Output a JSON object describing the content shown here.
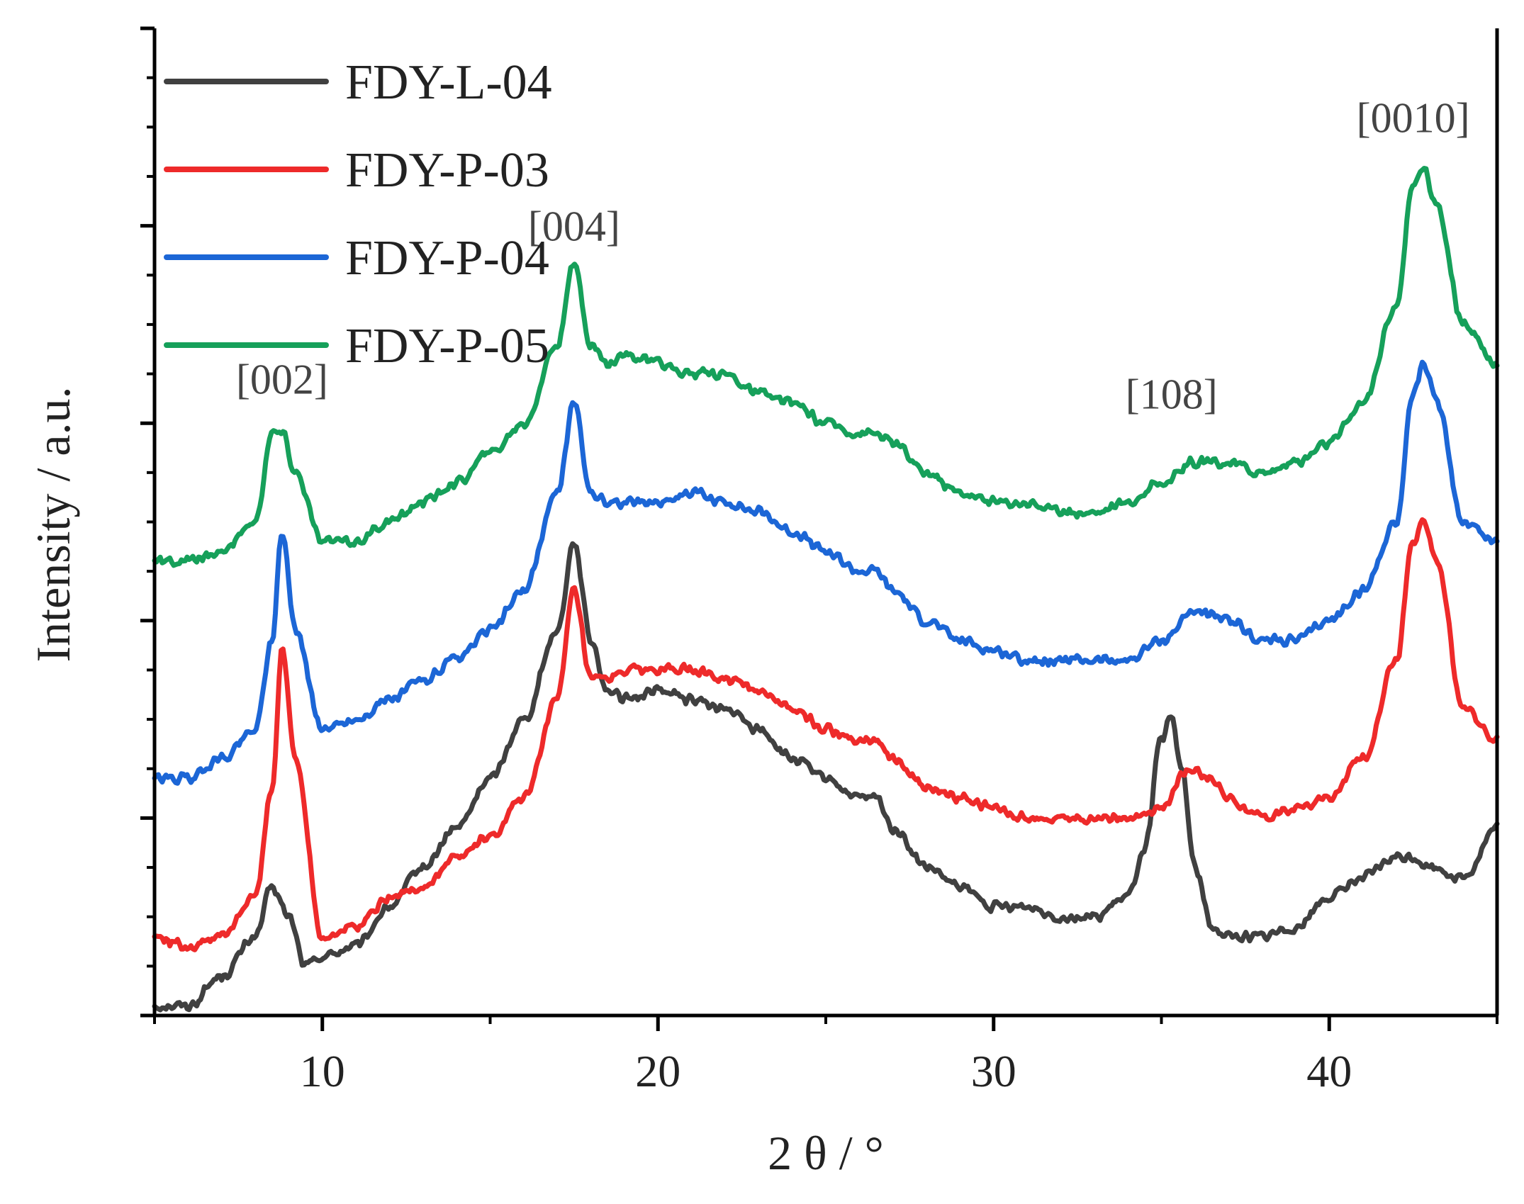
{
  "chart_data": {
    "type": "line",
    "title": "",
    "xlabel": "2 θ / °",
    "ylabel": "Intensity / a.u.",
    "xlim": [
      5,
      45
    ],
    "ylim": [
      0,
      10
    ],
    "xticks": [
      10,
      20,
      30,
      40
    ],
    "xtick_labels": [
      "10",
      "20",
      "30",
      "40"
    ],
    "yticks_shown": false,
    "legend_position": "top-left",
    "colors": {
      "FDY-L-04": "#404040",
      "FDY-P-03": "#ee2a2a",
      "FDY-P-04": "#1c66d6",
      "FDY-P-05": "#16a05a",
      "axis": "#000000"
    },
    "series": [
      {
        "name": "FDY-L-04",
        "x": [
          5,
          6,
          7,
          8,
          8.5,
          9,
          9.5,
          10,
          11,
          12,
          13,
          14,
          15,
          16,
          17,
          17.5,
          18,
          18.5,
          19,
          20,
          21,
          22,
          23,
          24,
          25,
          26,
          26.5,
          27,
          28,
          29,
          30,
          31,
          32,
          33,
          34,
          34.5,
          35,
          35.3,
          35.6,
          36,
          36.5,
          37,
          38,
          39,
          40,
          41,
          42,
          42.5,
          43,
          44,
          45
        ],
        "y": [
          0.1,
          0.1,
          0.4,
          0.8,
          1.3,
          1.0,
          0.5,
          0.6,
          0.7,
          1.1,
          1.5,
          1.9,
          2.4,
          3.0,
          3.9,
          4.8,
          3.8,
          3.3,
          3.2,
          3.3,
          3.2,
          3.1,
          2.9,
          2.6,
          2.4,
          2.2,
          2.2,
          1.9,
          1.5,
          1.3,
          1.1,
          1.1,
          1.0,
          1.0,
          1.2,
          1.7,
          2.8,
          3.0,
          2.5,
          1.5,
          0.9,
          0.8,
          0.8,
          0.9,
          1.2,
          1.4,
          1.6,
          1.6,
          1.5,
          1.4,
          1.9
        ]
      },
      {
        "name": "FDY-P-03",
        "x": [
          5,
          6,
          7,
          8,
          8.5,
          8.8,
          9.2,
          10,
          11,
          12,
          13,
          14,
          15,
          16,
          17,
          17.5,
          18,
          18.5,
          19,
          20,
          21,
          22,
          23,
          24,
          25,
          26,
          26.5,
          27,
          28,
          29,
          30,
          31,
          32,
          33,
          34,
          35,
          35.8,
          36.5,
          37,
          38,
          39,
          40,
          41,
          42,
          42.5,
          42.8,
          43.2,
          44,
          45
        ],
        "y": [
          0.8,
          0.7,
          0.8,
          1.2,
          2.3,
          3.7,
          2.6,
          0.8,
          0.9,
          1.2,
          1.3,
          1.6,
          1.8,
          2.2,
          3.2,
          4.3,
          3.4,
          3.4,
          3.5,
          3.5,
          3.5,
          3.4,
          3.3,
          3.1,
          2.9,
          2.8,
          2.8,
          2.6,
          2.3,
          2.2,
          2.1,
          2.0,
          2.0,
          2.0,
          2.0,
          2.1,
          2.5,
          2.4,
          2.2,
          2.0,
          2.1,
          2.2,
          2.6,
          3.6,
          4.8,
          5.0,
          4.6,
          3.1,
          2.8
        ]
      },
      {
        "name": "FDY-P-04",
        "x": [
          5,
          6,
          7,
          8,
          8.5,
          8.8,
          9.2,
          10,
          11,
          12,
          13,
          14,
          15,
          16,
          17,
          17.5,
          18,
          18.5,
          19,
          20,
          21,
          22,
          23,
          24,
          25,
          26,
          26.5,
          27,
          28,
          29,
          30,
          31,
          32,
          33,
          34,
          35,
          36,
          37,
          38,
          39,
          40,
          41,
          42,
          42.5,
          42.8,
          43.2,
          44,
          45
        ],
        "y": [
          2.4,
          2.4,
          2.6,
          2.9,
          3.8,
          4.9,
          3.9,
          2.9,
          3.0,
          3.2,
          3.4,
          3.6,
          3.9,
          4.3,
          5.3,
          6.2,
          5.3,
          5.2,
          5.2,
          5.2,
          5.3,
          5.2,
          5.1,
          4.9,
          4.7,
          4.5,
          4.5,
          4.3,
          4.0,
          3.8,
          3.7,
          3.6,
          3.6,
          3.6,
          3.6,
          3.8,
          4.1,
          4.0,
          3.8,
          3.8,
          4.0,
          4.3,
          5.0,
          6.3,
          6.6,
          6.2,
          5.0,
          4.8
        ]
      },
      {
        "name": "FDY-P-05",
        "x": [
          5,
          6,
          7,
          8,
          8.5,
          8.8,
          9.2,
          10,
          11,
          12,
          13,
          14,
          15,
          16,
          17,
          17.5,
          18,
          18.5,
          19,
          20,
          21,
          22,
          23,
          24,
          25,
          26,
          26.5,
          27,
          28,
          29,
          30,
          31,
          32,
          33,
          34,
          35,
          36,
          37,
          38,
          39,
          40,
          41,
          42,
          42.5,
          42.8,
          43.2,
          44,
          45
        ],
        "y": [
          4.6,
          4.6,
          4.7,
          5.0,
          5.9,
          5.9,
          5.5,
          4.8,
          4.8,
          5.0,
          5.2,
          5.4,
          5.7,
          6.0,
          6.8,
          7.6,
          6.8,
          6.6,
          6.7,
          6.6,
          6.5,
          6.5,
          6.3,
          6.2,
          6.0,
          5.9,
          5.9,
          5.8,
          5.5,
          5.3,
          5.2,
          5.2,
          5.1,
          5.1,
          5.2,
          5.4,
          5.6,
          5.6,
          5.5,
          5.6,
          5.8,
          6.2,
          7.2,
          8.4,
          8.6,
          8.2,
          7.0,
          6.6
        ]
      }
    ],
    "annotations": [
      {
        "text": "[002]",
        "x": 8.8,
        "y": 6.3
      },
      {
        "text": "[004]",
        "x": 17.5,
        "y": 7.85
      },
      {
        "text": "[108]",
        "x": 35.3,
        "y": 6.15
      },
      {
        "text": "[0010]",
        "x": 42.5,
        "y": 8.95
      }
    ]
  }
}
